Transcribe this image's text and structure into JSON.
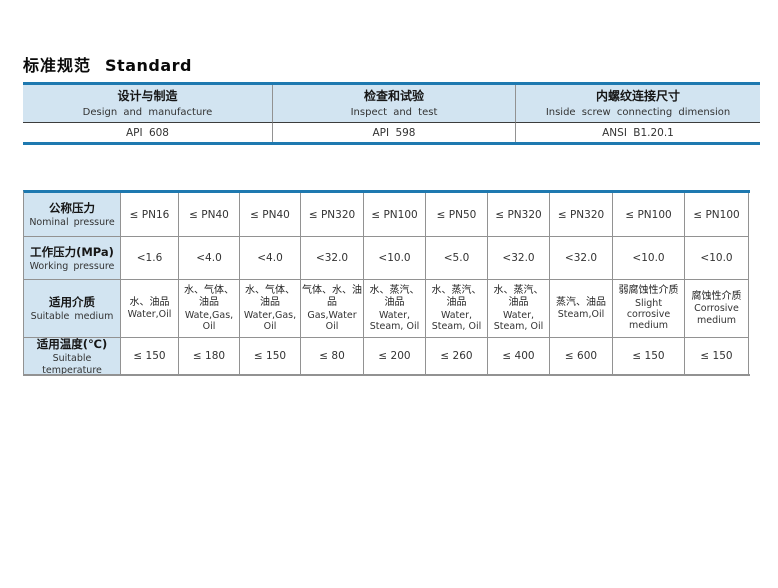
{
  "page": {
    "title_zh": "标准规范",
    "title_en": "Standard"
  },
  "colors": {
    "accent_blue_line": "#1e79b0",
    "header_fill": "#d2e4f1",
    "grid_gray": "#929292"
  },
  "standards_table": {
    "columns": [
      {
        "zh": "设计与制造",
        "en": "Design and manufacture",
        "value": "API 608"
      },
      {
        "zh": "检查和试验",
        "en": "Inspect and test",
        "value": "API 598"
      },
      {
        "zh": "内螺纹连接尺寸",
        "en": "Inside screw connecting dimension",
        "value": "ANSI B1.20.1"
      }
    ]
  },
  "spec_table": {
    "row_headers": [
      {
        "zh": "公称压力",
        "en": "Nominal pressure"
      },
      {
        "zh": "工作压力(MPa)",
        "en": "Working pressure"
      },
      {
        "zh": "适用介质",
        "en": "Suitable medium"
      },
      {
        "zh": "适用温度(℃)",
        "en": "Suitable temperature"
      }
    ],
    "nominal_pressure": [
      "≤ PN16",
      "≤ PN40",
      "≤ PN40",
      "≤ PN320",
      "≤ PN100",
      "≤ PN50",
      "≤ PN320",
      "≤ PN320",
      "≤ PN100",
      "≤ PN100"
    ],
    "working_pressure": [
      "<1.6",
      "<4.0",
      "<4.0",
      "<32.0",
      "<10.0",
      "<5.0",
      "<32.0",
      "<32.0",
      "<10.0",
      "<10.0"
    ],
    "suitable_medium": [
      {
        "zh": "水、油品",
        "en": "Water,Oil"
      },
      {
        "zh": "水、气体、油品",
        "en": "Wate,Gas, Oil"
      },
      {
        "zh": "水、气体、油品",
        "en": "Water,Gas, Oil"
      },
      {
        "zh": "气体、水、油品",
        "en": "Gas,Water Oil"
      },
      {
        "zh": "水、蒸汽、油品",
        "en": "Water, Steam, Oil"
      },
      {
        "zh": "水、蒸汽、油品",
        "en": "Water, Steam, Oil"
      },
      {
        "zh": "水、蒸汽、油品",
        "en": "Water, Steam, Oil"
      },
      {
        "zh": "蒸汽、油品",
        "en": "Steam,Oil"
      },
      {
        "zh": "弱腐蚀性介质",
        "en": "Slight corrosive medium"
      },
      {
        "zh": "腐蚀性介质",
        "en": "Corrosive medium"
      }
    ],
    "suitable_temperature": [
      "≤ 150",
      "≤ 180",
      "≤ 150",
      "≤ 80",
      "≤ 200",
      "≤ 260",
      "≤ 400",
      "≤ 600",
      "≤ 150",
      "≤ 150"
    ]
  }
}
